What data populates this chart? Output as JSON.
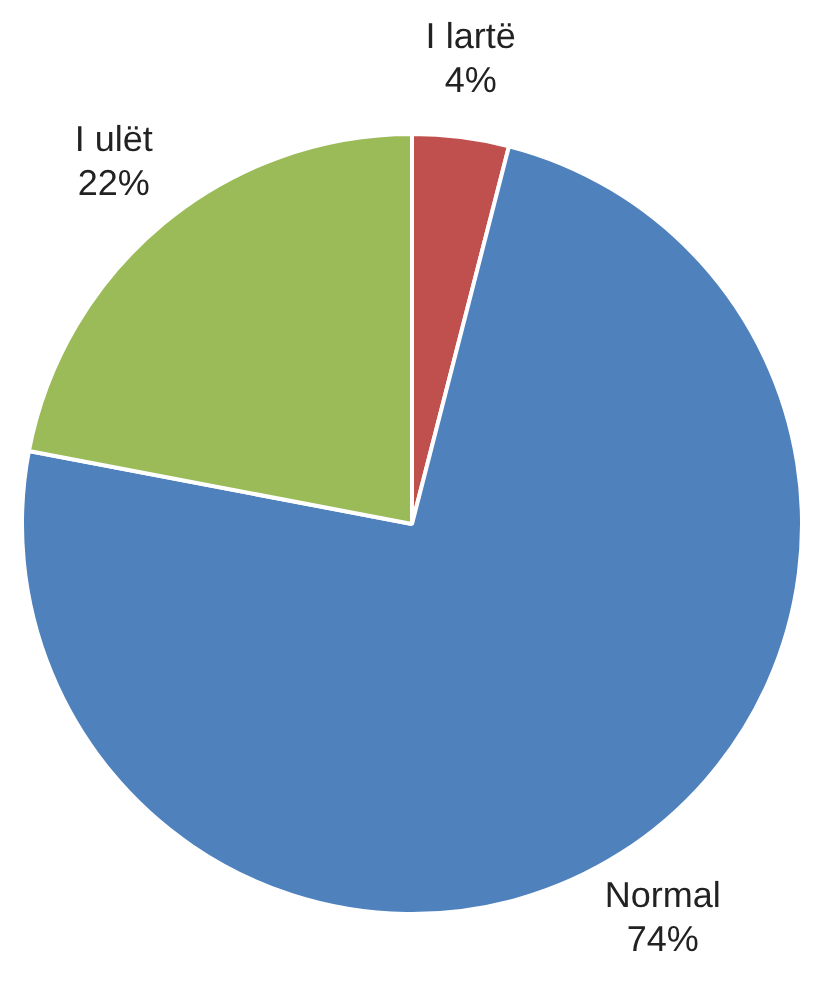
{
  "chart_data": {
    "type": "pie",
    "categories": [
      "I lartë",
      "Normal",
      "I ulët"
    ],
    "values": [
      4,
      74,
      22
    ],
    "colors": [
      "#c0504d",
      "#4f81bd",
      "#9bbb59"
    ],
    "value_labels": [
      "4%",
      "74%",
      "22%"
    ],
    "legend": false
  }
}
